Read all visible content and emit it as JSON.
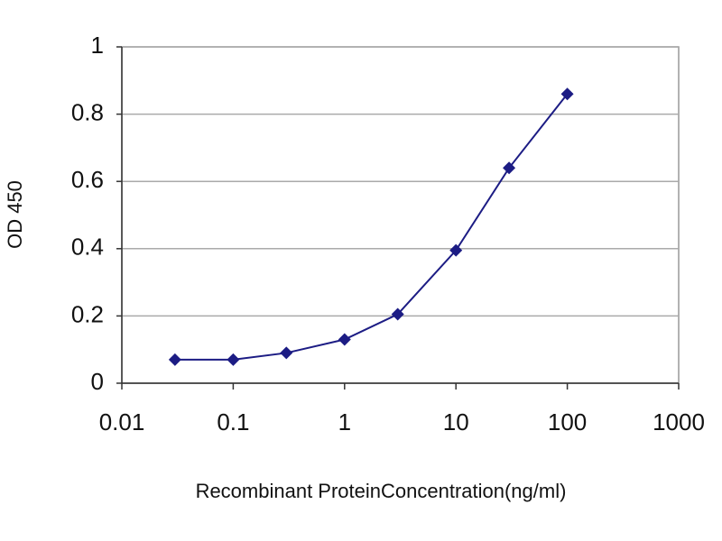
{
  "chart_data": {
    "type": "line",
    "xlabel": "Recombinant ProteinConcentration(ng/ml)",
    "ylabel": "OD 450",
    "x": [
      0.03,
      0.1,
      0.3,
      1,
      3,
      10,
      30,
      100
    ],
    "values": [
      0.07,
      0.07,
      0.09,
      0.13,
      0.205,
      0.395,
      0.64,
      0.86
    ],
    "color": "#1c1c84",
    "xlim": [
      0.01,
      1000
    ],
    "xticks": [
      0.01,
      0.1,
      1,
      10,
      100,
      1000
    ],
    "xscale": "log",
    "ylim": [
      0,
      1
    ],
    "yticks": [
      0,
      0.2,
      0.4,
      0.6,
      0.8,
      1
    ],
    "grid": true
  }
}
